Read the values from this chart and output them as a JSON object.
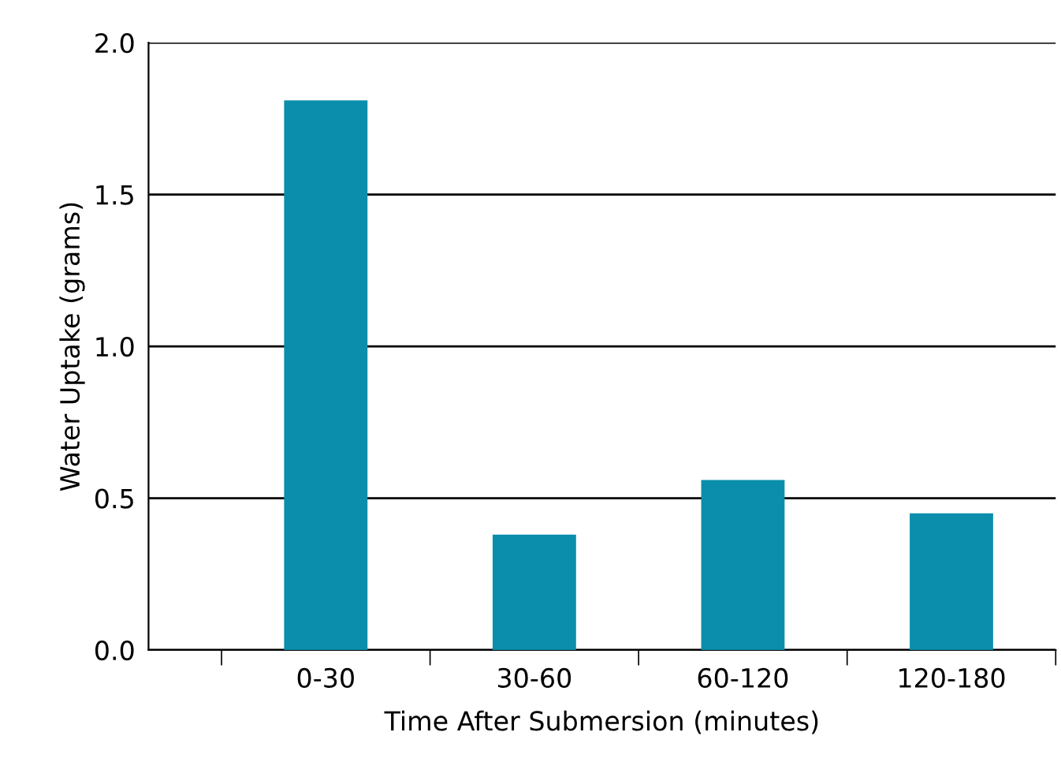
{
  "chart_data": {
    "type": "bar",
    "xlabel": "Time After Submersion (minutes)",
    "ylabel": "Water Uptake (grams)",
    "categories": [
      "0-30",
      "30-60",
      "60-120",
      "120-180"
    ],
    "values": [
      1.81,
      0.38,
      0.56,
      0.45
    ],
    "color": "#0a8eab",
    "ylim": [
      0,
      2.0
    ],
    "yticks": [
      {
        "value": 0,
        "label": "0.0"
      },
      0.5,
      {
        "value": 1,
        "label": "1.0"
      },
      1.5,
      {
        "value": 2,
        "label": "2.0"
      }
    ],
    "grid": "y"
  }
}
